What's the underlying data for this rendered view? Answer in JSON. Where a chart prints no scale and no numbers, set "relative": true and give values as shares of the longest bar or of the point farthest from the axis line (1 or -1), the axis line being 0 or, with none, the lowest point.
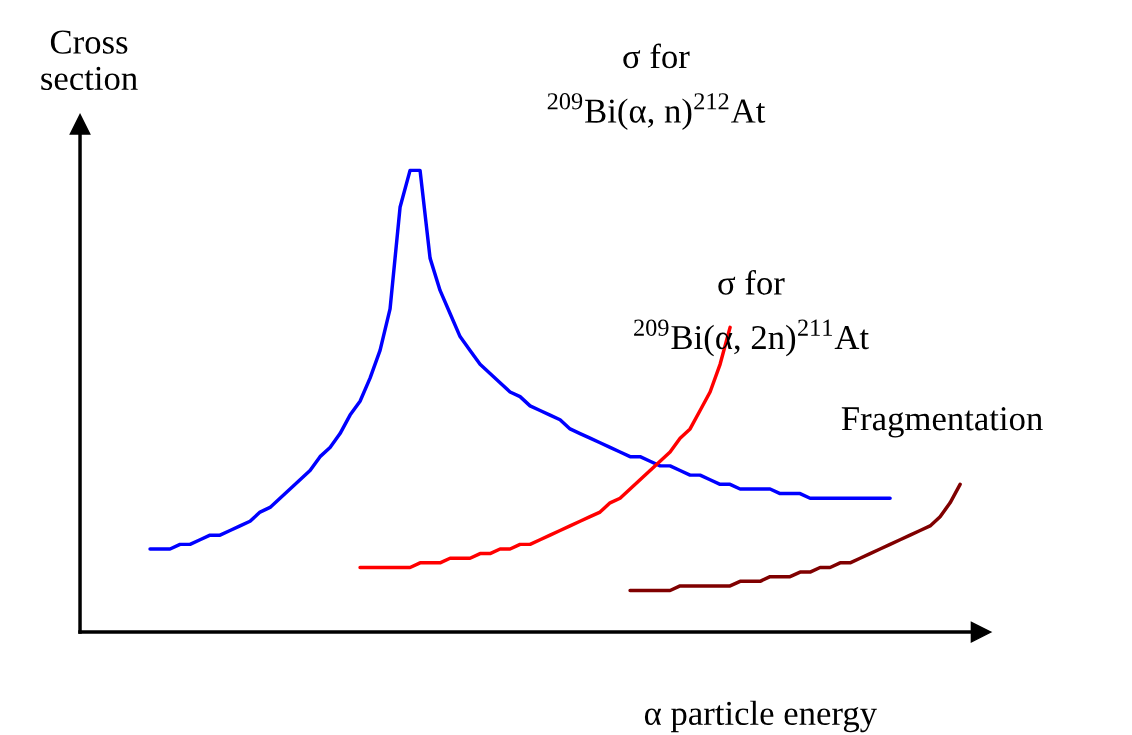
{
  "chart_data": {
    "type": "line",
    "relative": true,
    "legend": false,
    "marker": "none",
    "line_style": "solid",
    "xlabel": "α particle energy",
    "ylabel": "Cross\nsection",
    "categories": [
      null,
      null,
      null,
      null,
      null,
      null,
      null,
      null,
      null,
      null,
      null,
      null,
      null,
      null,
      null,
      null,
      null,
      null,
      null,
      null,
      null,
      null,
      null,
      null,
      null,
      null,
      null,
      null,
      null,
      null,
      null,
      null,
      null,
      null,
      null,
      null,
      null,
      null,
      null,
      null,
      null,
      null,
      null,
      null,
      null,
      null,
      null,
      null,
      null,
      null,
      null,
      null,
      null,
      null,
      null,
      null,
      null,
      null,
      null,
      null,
      null,
      null,
      null,
      null,
      null,
      null,
      null,
      null,
      null,
      null,
      null,
      null,
      null,
      null,
      null,
      null,
      null,
      null,
      null,
      null,
      null,
      null
    ],
    "series": [
      {
        "name": "σ for\n$^{209}$Bi(α, n)$^{212}$At",
        "color": "#0000ff",
        "values": [
          0.18,
          0.18,
          0.18,
          0.19,
          0.19,
          0.2,
          0.21,
          0.21,
          0.22,
          0.23,
          0.24,
          0.26,
          0.27,
          0.29,
          0.31,
          0.33,
          0.35,
          0.38,
          0.4,
          0.43,
          0.47,
          0.5,
          0.55,
          0.61,
          0.7,
          0.92,
          1.0,
          1.0,
          0.81,
          0.74,
          0.69,
          0.64,
          0.61,
          0.58,
          0.56,
          0.54,
          0.52,
          0.51,
          0.49,
          0.48,
          0.47,
          0.46,
          0.44,
          0.43,
          0.42,
          0.41,
          0.4,
          0.39,
          0.38,
          0.38,
          0.37,
          0.36,
          0.36,
          0.35,
          0.34,
          0.34,
          0.33,
          0.32,
          0.32,
          0.31,
          0.31,
          0.31,
          0.31,
          0.3,
          0.3,
          0.3,
          0.29,
          0.29,
          0.29,
          0.29,
          0.29,
          0.29,
          0.29,
          0.29,
          0.29,
          null,
          null,
          null,
          null,
          null,
          null,
          null
        ]
      },
      {
        "name": "σ for\n$^{209}$Bi(α, 2n)$^{211}$At",
        "color": "#ff0000",
        "values": [
          null,
          null,
          null,
          null,
          null,
          null,
          null,
          null,
          null,
          null,
          null,
          null,
          null,
          null,
          null,
          null,
          null,
          null,
          null,
          null,
          null,
          0.14,
          0.14,
          0.14,
          0.14,
          0.14,
          0.14,
          0.15,
          0.15,
          0.15,
          0.16,
          0.16,
          0.16,
          0.17,
          0.17,
          0.18,
          0.18,
          0.19,
          0.19,
          0.2,
          0.21,
          0.22,
          0.23,
          0.24,
          0.25,
          0.26,
          0.28,
          0.29,
          0.31,
          0.33,
          0.35,
          0.37,
          0.39,
          0.42,
          0.44,
          0.48,
          0.52,
          0.58,
          0.66,
          null,
          null,
          null,
          null,
          null,
          null,
          null,
          null,
          null,
          null,
          null,
          null,
          null,
          null,
          null,
          null,
          null,
          null,
          null,
          null,
          null,
          null,
          null
        ]
      },
      {
        "name": "Fragmentation",
        "color": "#800000",
        "values": [
          null,
          null,
          null,
          null,
          null,
          null,
          null,
          null,
          null,
          null,
          null,
          null,
          null,
          null,
          null,
          null,
          null,
          null,
          null,
          null,
          null,
          null,
          null,
          null,
          null,
          null,
          null,
          null,
          null,
          null,
          null,
          null,
          null,
          null,
          null,
          null,
          null,
          null,
          null,
          null,
          null,
          null,
          null,
          null,
          null,
          null,
          null,
          null,
          0.09,
          0.09,
          0.09,
          0.09,
          0.09,
          0.1,
          0.1,
          0.1,
          0.1,
          0.1,
          0.1,
          0.11,
          0.11,
          0.11,
          0.12,
          0.12,
          0.12,
          0.13,
          0.13,
          0.14,
          0.14,
          0.15,
          0.15,
          0.16,
          0.17,
          0.18,
          0.19,
          0.2,
          0.21,
          0.22,
          0.23,
          0.25,
          0.28,
          0.32
        ]
      }
    ]
  }
}
